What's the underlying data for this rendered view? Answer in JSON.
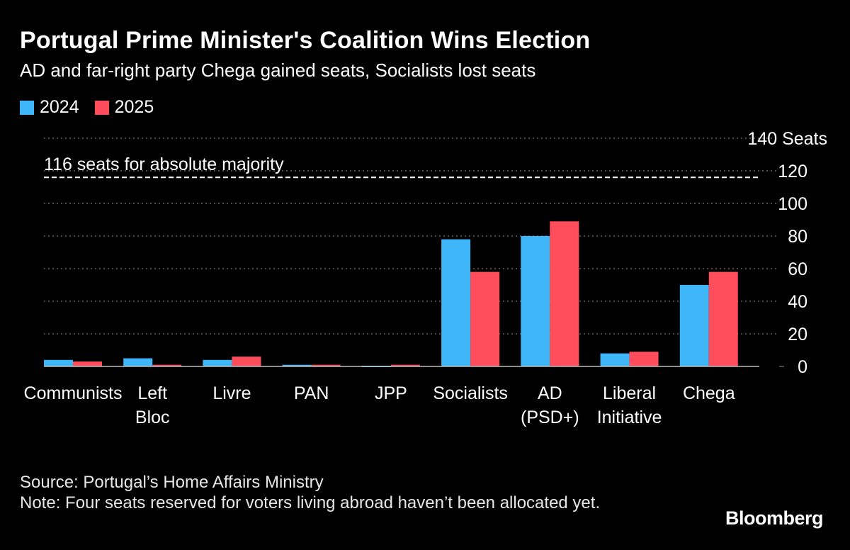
{
  "header": {
    "title": "Portugal Prime Minister's Coalition Wins Election",
    "subtitle": "AD and far-right party Chega gained seats, Socialists lost seats"
  },
  "colors": {
    "series_2024": "#3eb6f8",
    "series_2025": "#ff4d5c",
    "background": "#000000"
  },
  "chart_data": {
    "type": "bar",
    "categories": [
      [
        "Communists"
      ],
      [
        "Left",
        "Bloc"
      ],
      [
        "Livre"
      ],
      [
        "PAN"
      ],
      [
        "JPP"
      ],
      [
        "Socialists"
      ],
      [
        "AD",
        "(PSD+)"
      ],
      [
        "Liberal",
        "Initiative"
      ],
      [
        "Chega"
      ]
    ],
    "series": [
      {
        "name": "2024",
        "values": [
          4,
          5,
          4,
          1,
          0,
          78,
          80,
          8,
          50
        ]
      },
      {
        "name": "2025",
        "values": [
          3,
          1,
          6,
          1,
          1,
          58,
          89,
          9,
          58
        ]
      }
    ],
    "y_ticks": [
      0,
      20,
      40,
      60,
      80,
      100,
      120,
      140
    ],
    "y_unit_label": "Seats",
    "ylim": [
      0,
      140
    ],
    "reference_line": {
      "value": 116,
      "label": "116 seats for absolute majority"
    },
    "legend": [
      "2024",
      "2025"
    ]
  },
  "footer": {
    "source": "Source: Portugal’s Home Affairs Ministry",
    "note": "Note: Four seats reserved for voters living abroad haven’t been allocated yet.",
    "brand": "Bloomberg"
  }
}
